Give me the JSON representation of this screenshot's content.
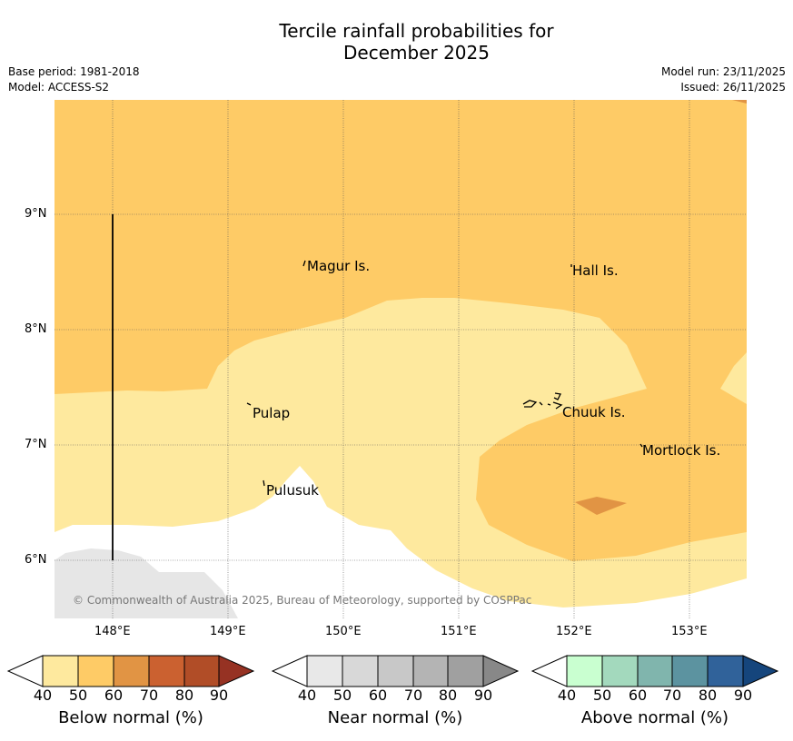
{
  "title_line1": "Tercile rainfall probabilities for",
  "title_line2": "December 2025",
  "base_period": "Base period: 1981-2018",
  "model": "Model: ACCESS-S2",
  "model_run": "Model run: 23/11/2025",
  "issued": "Issued: 26/11/2025",
  "lat_labels": [
    "9°N",
    "8°N",
    "7°N",
    "6°N"
  ],
  "lon_labels": [
    "148°E",
    "149°E",
    "150°E",
    "151°E",
    "152°E",
    "153°E"
  ],
  "places": {
    "magur": "Magur Is.",
    "hall": "Hall Is.",
    "pulap": "Pulap",
    "chuuk": "Chuuk Is.",
    "mortlock": "Mortlock Is.",
    "pulusuk": "Pulusuk"
  },
  "copyright": "© Commonwealth of Australia 2025, Bureau of Meteorology, supported by COSPPac",
  "colorbars": {
    "below": {
      "label": "Below normal (%)",
      "ticks": [
        "40",
        "50",
        "60",
        "70",
        "80",
        "90"
      ],
      "colors": [
        "#ffffff",
        "#fee99e",
        "#fecb66",
        "#e19444",
        "#cb6130",
        "#b14d27",
        "#963223"
      ]
    },
    "near": {
      "label": "Near normal (%)",
      "ticks": [
        "40",
        "50",
        "60",
        "70",
        "80",
        "90"
      ],
      "colors": [
        "#ffffff",
        "#e8e8e8",
        "#d8d8d8",
        "#c8c8c8",
        "#b4b4b4",
        "#a0a0a0",
        "#888888"
      ]
    },
    "above": {
      "label": "Above normal (%)",
      "ticks": [
        "40",
        "50",
        "60",
        "70",
        "80",
        "90"
      ],
      "colors": [
        "#ffffff",
        "#c9ffd0",
        "#a3d9bd",
        "#80b5ad",
        "#5c93a0",
        "#30629a",
        "#15457c"
      ]
    }
  }
}
